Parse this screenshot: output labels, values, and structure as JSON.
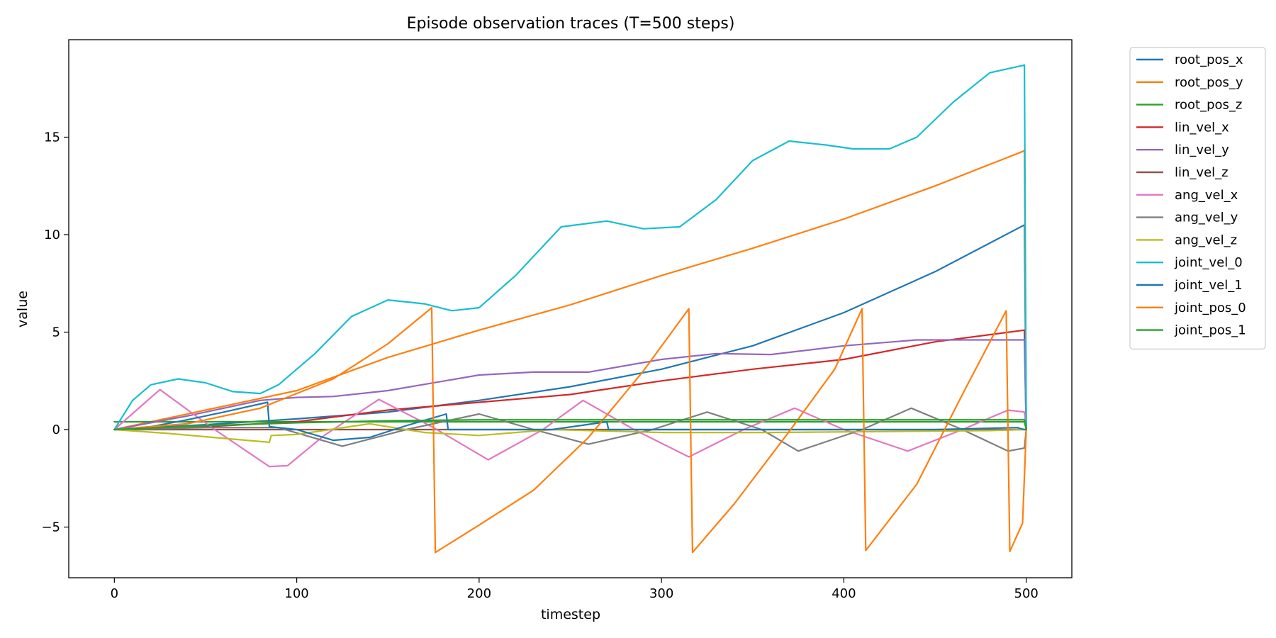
{
  "chart_data": {
    "type": "line",
    "title": "Episode observation traces (T=500 steps)",
    "xlabel": "timestep",
    "ylabel": "value",
    "xlim": [
      -25,
      525
    ],
    "ylim": [
      -7.6,
      20.0
    ],
    "xticks": [
      0,
      100,
      200,
      300,
      400,
      500
    ],
    "yticks": [
      -5,
      0,
      5,
      10,
      15
    ],
    "grid": false,
    "legend_position": "outside-top-right",
    "series": [
      {
        "name": "root_pos_x",
        "color": "#1f77b4",
        "x": [
          0,
          50,
          100,
          150,
          200,
          250,
          300,
          350,
          400,
          450,
          499,
          500
        ],
        "y": [
          0,
          0.25,
          0.55,
          0.9,
          1.5,
          2.2,
          3.1,
          4.3,
          6.0,
          8.1,
          10.5,
          0
        ]
      },
      {
        "name": "root_pos_y",
        "color": "#ff7f0e",
        "x": [
          0,
          50,
          100,
          150,
          200,
          250,
          300,
          350,
          400,
          450,
          499,
          500
        ],
        "y": [
          0,
          1.0,
          2.0,
          3.7,
          5.1,
          6.4,
          7.9,
          9.3,
          10.8,
          12.5,
          14.3,
          0
        ]
      },
      {
        "name": "root_pos_z",
        "color": "#2ca02c",
        "x": [
          0,
          100,
          200,
          300,
          400,
          499,
          500
        ],
        "y": [
          0.4,
          0.4,
          0.4,
          0.4,
          0.4,
          0.4,
          0
        ]
      },
      {
        "name": "lin_vel_x",
        "color": "#d62728",
        "x": [
          0,
          50,
          100,
          150,
          200,
          250,
          300,
          350,
          400,
          450,
          499,
          500
        ],
        "y": [
          0,
          0.15,
          0.4,
          1.0,
          1.4,
          1.8,
          2.5,
          3.1,
          3.6,
          4.5,
          5.1,
          0
        ]
      },
      {
        "name": "lin_vel_y",
        "color": "#9467bd",
        "x": [
          0,
          40,
          80,
          100,
          120,
          150,
          200,
          230,
          260,
          300,
          330,
          360,
          400,
          440,
          470,
          499,
          500
        ],
        "y": [
          0,
          0.7,
          1.5,
          1.65,
          1.7,
          2.0,
          2.8,
          2.95,
          2.95,
          3.6,
          3.9,
          3.85,
          4.3,
          4.6,
          4.6,
          4.6,
          0
        ]
      },
      {
        "name": "lin_vel_z",
        "color": "#8c564b",
        "x": [
          0,
          100,
          200,
          300,
          400,
          499,
          500
        ],
        "y": [
          0,
          0,
          0,
          0,
          0,
          0,
          0
        ]
      },
      {
        "name": "ang_vel_x",
        "color": "#e377c2",
        "x": [
          0,
          25,
          55,
          85,
          95,
          115,
          145,
          175,
          205,
          235,
          257,
          285,
          315,
          345,
          373,
          400,
          435,
          465,
          490,
          499,
          500
        ],
        "y": [
          0,
          2.05,
          0,
          -1.9,
          -1.85,
          -0.3,
          1.55,
          0.1,
          -1.55,
          0,
          1.5,
          0,
          -1.4,
          0,
          1.1,
          0,
          -1.1,
          0,
          1.0,
          0.9,
          0
        ]
      },
      {
        "name": "ang_vel_y",
        "color": "#7f7f7f",
        "x": [
          0,
          50,
          90,
          125,
          160,
          200,
          230,
          260,
          295,
          325,
          355,
          375,
          410,
          437,
          465,
          490,
          499,
          500
        ],
        "y": [
          0,
          0.1,
          0.1,
          -0.85,
          0,
          0.8,
          0,
          -0.75,
          0,
          0.9,
          0,
          -1.1,
          0,
          1.1,
          0,
          -1.1,
          -0.95,
          0
        ]
      },
      {
        "name": "ang_vel_z",
        "color": "#bcbd22",
        "x": [
          0,
          30,
          60,
          85,
          86,
          100,
          140,
          170,
          200,
          240,
          300,
          360,
          420,
          480,
          499,
          500
        ],
        "y": [
          0,
          -0.2,
          -0.45,
          -0.65,
          -0.3,
          -0.25,
          0.3,
          -0.15,
          -0.3,
          0,
          -0.15,
          -0.15,
          -0.1,
          -0.05,
          0,
          0
        ]
      },
      {
        "name": "joint_vel_0",
        "color": "#17becf",
        "x": [
          0,
          10,
          20,
          35,
          50,
          65,
          80,
          90,
          110,
          130,
          150,
          170,
          185,
          200,
          220,
          245,
          270,
          290,
          310,
          330,
          350,
          370,
          390,
          405,
          425,
          440,
          460,
          480,
          499,
          500
        ],
        "y": [
          0,
          1.5,
          2.3,
          2.6,
          2.4,
          1.95,
          1.85,
          2.3,
          3.9,
          5.8,
          6.65,
          6.45,
          6.1,
          6.25,
          7.9,
          10.4,
          10.7,
          10.3,
          10.4,
          11.8,
          13.8,
          14.8,
          14.6,
          14.4,
          14.4,
          15.0,
          16.8,
          18.3,
          18.7,
          0
        ]
      },
      {
        "name": "joint_vel_1",
        "color": "#1f77b4",
        "x": [
          0,
          20,
          40,
          60,
          84,
          85,
          100,
          120,
          140,
          160,
          182,
          183,
          200,
          240,
          270,
          271,
          300,
          380,
          450,
          495,
          499,
          500
        ],
        "y": [
          0,
          0.15,
          0.5,
          0.9,
          1.4,
          0.15,
          0,
          -0.55,
          -0.4,
          0.2,
          0.8,
          0,
          0,
          0,
          0.4,
          0,
          0,
          0,
          0,
          0.1,
          0,
          0
        ]
      },
      {
        "name": "joint_pos_0",
        "color": "#ff7f0e",
        "x": [
          0,
          40,
          80,
          120,
          150,
          174,
          176,
          200,
          230,
          260,
          290,
          315,
          317,
          340,
          370,
          395,
          410,
          412,
          440,
          465,
          489,
          491,
          498,
          500
        ],
        "y": [
          0,
          0.3,
          1.1,
          2.6,
          4.4,
          6.25,
          -6.3,
          -4.9,
          -3.1,
          -0.4,
          3.0,
          6.2,
          -6.3,
          -3.8,
          -0.1,
          3.1,
          6.2,
          -6.2,
          -2.8,
          1.8,
          6.1,
          -6.25,
          -4.8,
          0
        ]
      },
      {
        "name": "joint_pos_1",
        "color": "#2ca02c",
        "x": [
          0,
          50,
          100,
          150,
          200,
          300,
          400,
          499,
          500
        ],
        "y": [
          0,
          0.2,
          0.35,
          0.45,
          0.5,
          0.5,
          0.5,
          0.5,
          0
        ]
      }
    ]
  }
}
